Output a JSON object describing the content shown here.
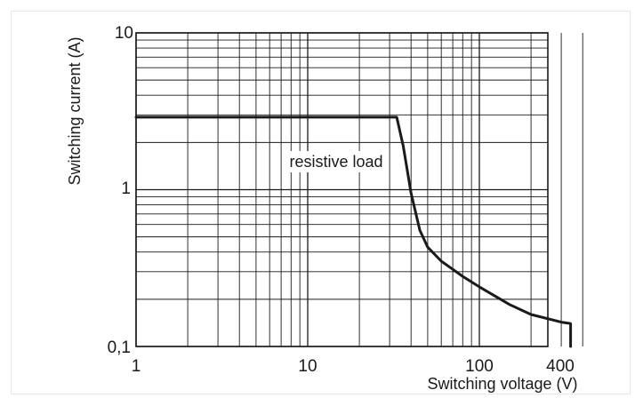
{
  "chart_data": {
    "type": "line",
    "title": "",
    "xlabel": "Switching voltage (V)",
    "ylabel": "Switching current (A)",
    "xscale": "log",
    "yscale": "log",
    "xlim": [
      1,
      400
    ],
    "ylim": [
      0.1,
      10
    ],
    "grid": true,
    "x_tick_labels": [
      "1",
      "10",
      "100",
      "400"
    ],
    "y_tick_labels": [
      "0,1",
      "1",
      "10"
    ],
    "annotation": "resistive load",
    "series": [
      {
        "x": [
          1,
          33,
          36,
          40,
          45,
          50,
          60,
          80,
          100,
          150,
          200,
          300,
          340,
          340
        ],
        "y": [
          2.9,
          2.9,
          1.9,
          0.95,
          0.55,
          0.43,
          0.35,
          0.28,
          0.24,
          0.185,
          0.16,
          0.143,
          0.14,
          0.1
        ]
      }
    ],
    "colors": {
      "curve": "#1a1a1a",
      "grid": "#1a1a1a",
      "axis": "#1a1a1a"
    }
  }
}
